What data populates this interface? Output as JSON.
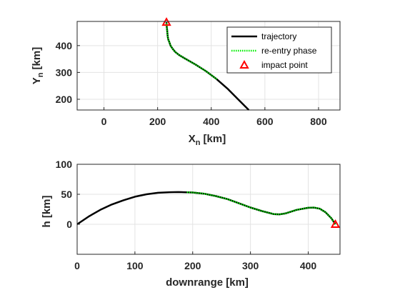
{
  "chart_data": [
    {
      "type": "line",
      "xlabel": "X",
      "xlabel_sub": "n",
      "xlabel_unit": "[km]",
      "ylabel": "Y",
      "ylabel_sub": "n",
      "ylabel_unit": "[km]",
      "xlim": [
        -100,
        880
      ],
      "ylim": [
        160,
        490
      ],
      "xticks": [
        0,
        200,
        400,
        600,
        800
      ],
      "yticks": [
        200,
        300,
        400
      ],
      "grid": true,
      "legend_position": "top-right",
      "series": [
        {
          "name": "trajectory",
          "color": "#000000",
          "style": "solid",
          "x": [
            540,
            500,
            460,
            420,
            380,
            340,
            300,
            280,
            266,
            256,
            248,
            244,
            240,
            238,
            237,
            236,
            235,
            234,
            233
          ],
          "y": [
            160,
            200,
            240,
            275,
            305,
            330,
            353,
            365,
            376,
            388,
            400,
            412,
            422,
            432,
            442,
            452,
            462,
            472,
            487
          ]
        },
        {
          "name": "re-entry phase",
          "color": "#00ee00",
          "style": "dotted",
          "x": [
            420,
            380,
            340,
            300,
            280,
            266,
            256,
            248,
            244,
            240,
            238,
            237,
            236,
            235,
            234,
            233
          ],
          "y": [
            275,
            305,
            330,
            353,
            365,
            376,
            388,
            400,
            412,
            422,
            432,
            442,
            452,
            462,
            472,
            487
          ]
        },
        {
          "name": "impact point",
          "color": "#ff0000",
          "marker": "triangle",
          "x": [
            233
          ],
          "y": [
            487
          ]
        }
      ]
    },
    {
      "type": "line",
      "xlabel": "downrange [km]",
      "ylabel": "h [km]",
      "xlim": [
        0,
        455
      ],
      "ylim": [
        -50,
        100
      ],
      "xticks": [
        0,
        100,
        200,
        300,
        400
      ],
      "yticks": [
        0,
        50,
        100
      ],
      "grid": true,
      "series": [
        {
          "name": "trajectory",
          "color": "#000000",
          "style": "solid",
          "x": [
            0,
            20,
            40,
            60,
            80,
            100,
            120,
            140,
            160,
            175,
            185,
            190,
            200,
            220,
            240,
            260,
            280,
            300,
            320,
            340,
            350,
            360,
            380,
            400,
            410,
            420,
            430,
            440,
            447
          ],
          "y": [
            0,
            13,
            24,
            33,
            40,
            46,
            50,
            52.5,
            53.5,
            53.7,
            53.5,
            53.3,
            53,
            51,
            47,
            42,
            35,
            28,
            22,
            17,
            16.5,
            18,
            24,
            27.5,
            27.8,
            26,
            20,
            10,
            0
          ]
        },
        {
          "name": "re-entry phase",
          "color": "#00ee00",
          "style": "dotted",
          "x": [
            190,
            200,
            220,
            240,
            260,
            280,
            300,
            320,
            340,
            350,
            360,
            380,
            400,
            410,
            420,
            430,
            440,
            447
          ],
          "y": [
            53.3,
            53,
            51,
            47,
            42,
            35,
            28,
            22,
            17,
            16.5,
            18,
            24,
            27.5,
            27.8,
            26,
            20,
            10,
            0
          ]
        },
        {
          "name": "impact point",
          "color": "#ff0000",
          "marker": "triangle",
          "x": [
            447
          ],
          "y": [
            0
          ]
        }
      ]
    }
  ]
}
